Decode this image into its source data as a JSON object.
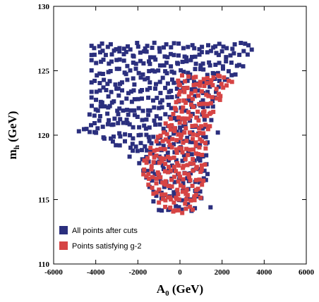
{
  "chart_data": {
    "type": "scatter",
    "title": "",
    "xlabel_main": "A",
    "xlabel_sub": "0",
    "xlabel_unit": " (GeV)",
    "ylabel_main": "m",
    "ylabel_sub": "h",
    "ylabel_unit": " (GeV)",
    "xlim": [
      -6000,
      6000
    ],
    "ylim": [
      110,
      130
    ],
    "x_ticks": [
      -6000,
      -4000,
      -2000,
      0,
      2000,
      4000,
      6000
    ],
    "y_ticks": [
      110,
      115,
      120,
      125,
      130
    ],
    "x_tick_labels": [
      "-6000",
      "-4000",
      "-2000",
      "0",
      "2000",
      "4000",
      "6000"
    ],
    "y_tick_labels": [
      "110",
      "115",
      "120",
      "125",
      "130"
    ],
    "grid": false,
    "legend_position": "bottom-left",
    "series": [
      {
        "name": "All points after cuts",
        "color": "#2b2f7e",
        "region": {
          "left": [
            [
              -4200,
              121.6
            ],
            [
              -4800,
              120.3
            ],
            [
              -3600,
              119.6
            ],
            [
              -2500,
              118.8
            ],
            [
              -1800,
              117.5
            ],
            [
              -1500,
              116.0
            ],
            [
              -1100,
              114.5
            ],
            [
              -600,
              114.0
            ]
          ],
          "right": [
            [
              3600,
              127.0
            ],
            [
              3000,
              125.5
            ],
            [
              2200,
              123.8
            ],
            [
              1600,
              122.5
            ],
            [
              1400,
              120.0
            ],
            [
              1300,
              117.0
            ],
            [
              1100,
              115.0
            ],
            [
              600,
              114.0
            ]
          ],
          "y_levels": [
            126.9,
            126.3,
            125.6,
            124.9,
            124.2,
            123.5,
            122.8,
            122.1,
            121.4,
            120.7,
            120.0,
            119.3,
            118.6,
            117.9,
            117.2,
            116.5,
            115.8,
            115.1,
            114.4
          ]
        },
        "outliers": [
          [
            -4800,
            120.3
          ],
          [
            -3900,
            121.9
          ],
          [
            1450,
            114.4
          ],
          [
            -1600,
            118.3
          ],
          [
            1800,
            120.2
          ]
        ]
      },
      {
        "name": "Points satisfying g-2",
        "color": "#d64444",
        "region": {
          "left": [
            [
              -100,
              123.0
            ],
            [
              -400,
              121.5
            ],
            [
              -1000,
              120.0
            ],
            [
              -1600,
              118.5
            ],
            [
              -1800,
              117.2
            ],
            [
              -1500,
              116.0
            ],
            [
              -1100,
              115.0
            ],
            [
              -600,
              114.0
            ]
          ],
          "right": [
            [
              2500,
              124.5
            ],
            [
              2200,
              123.5
            ],
            [
              1700,
              122.0
            ],
            [
              1300,
              120.0
            ],
            [
              1200,
              118.0
            ],
            [
              1100,
              116.0
            ],
            [
              900,
              115.0
            ],
            [
              600,
              114.0
            ]
          ],
          "y_levels": [
            124.4,
            123.8,
            123.2,
            122.6,
            122.0,
            121.4,
            120.8,
            120.2,
            119.6,
            119.0,
            118.4,
            117.8,
            117.2,
            116.6,
            116.0,
            115.4,
            114.8,
            114.2
          ]
        }
      }
    ]
  }
}
